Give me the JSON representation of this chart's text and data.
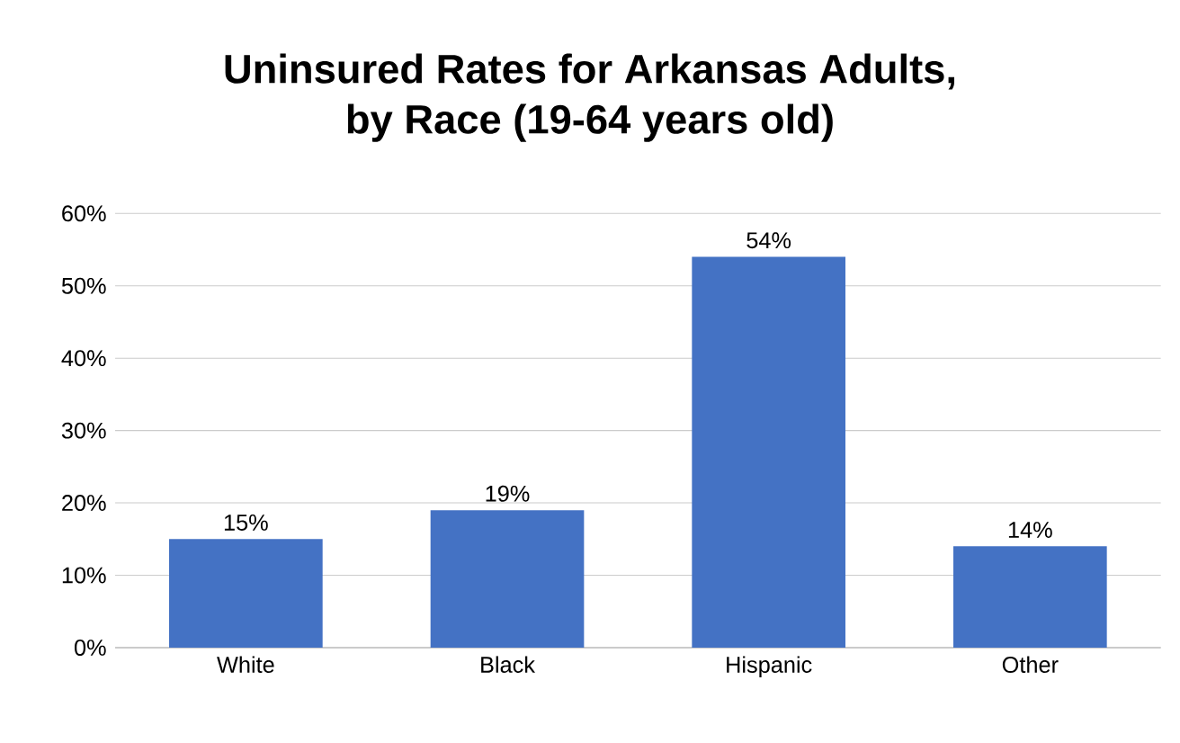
{
  "chart_data": {
    "type": "bar",
    "title": "Uninsured Rates for Arkansas Adults,\nby Race (19-64 years old)",
    "categories": [
      "White",
      "Black",
      "Hispanic",
      "Other"
    ],
    "values": [
      15,
      19,
      54,
      14
    ],
    "value_labels": [
      "15%",
      "19%",
      "54%",
      "14%"
    ],
    "color": "#4472c4",
    "ylim": [
      0,
      60
    ],
    "yticks": [
      {
        "value": 0,
        "label": "0%"
      },
      {
        "value": 10,
        "label": "10%"
      },
      {
        "value": 20,
        "label": "20%"
      },
      {
        "value": 30,
        "label": "30%"
      },
      {
        "value": 40,
        "label": "40%"
      },
      {
        "value": 50,
        "label": "50%"
      },
      {
        "value": 60,
        "label": "60%"
      }
    ],
    "grid": true
  }
}
